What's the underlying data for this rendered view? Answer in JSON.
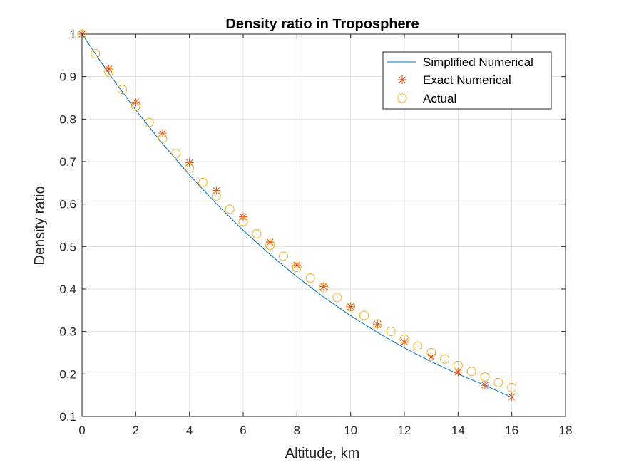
{
  "chart_data": {
    "type": "line",
    "title": "Density ratio in Troposphere",
    "xlabel": "Altitude, km",
    "ylabel": "Density ratio",
    "xlim": [
      0,
      18
    ],
    "ylim": [
      0.1,
      1
    ],
    "xticks": [
      0,
      2,
      4,
      6,
      8,
      10,
      12,
      14,
      16,
      18
    ],
    "yticks": [
      0.1,
      0.2,
      0.3,
      0.4,
      0.5,
      0.6,
      0.7,
      0.8,
      0.9,
      1
    ],
    "xtick_labels": [
      "0",
      "2",
      "4",
      "6",
      "8",
      "10",
      "12",
      "14",
      "16",
      "18"
    ],
    "ytick_labels": [
      "0.1",
      "0.2",
      "0.3",
      "0.4",
      "0.5",
      "0.6",
      "0.7",
      "0.8",
      "0.9",
      "1"
    ],
    "grid": true,
    "legend_position": "top-right",
    "series": [
      {
        "name": "Simplified Numerical",
        "style": "line",
        "color": "#0072BD",
        "x": [
          0,
          1,
          2,
          3,
          4,
          5,
          6,
          7,
          8,
          9,
          10,
          11,
          12,
          13,
          14,
          15,
          16
        ],
        "y": [
          1.0,
          0.9075,
          0.8216,
          0.7421,
          0.6685,
          0.6007,
          0.5383,
          0.4811,
          0.4287,
          0.3808,
          0.3372,
          0.2976,
          0.2616,
          0.2291,
          0.1998,
          0.1734,
          0.145
        ]
      },
      {
        "name": "Exact Numerical",
        "style": "star",
        "color": "#D95319",
        "x": [
          0,
          1,
          2,
          3,
          4,
          5,
          6,
          7,
          8,
          9,
          10,
          11,
          12,
          13,
          14,
          15,
          16
        ],
        "y": [
          1.0,
          0.9181,
          0.8403,
          0.7669,
          0.6976,
          0.6317,
          0.5703,
          0.5104,
          0.4566,
          0.4063,
          0.3584,
          0.3165,
          0.2753,
          0.2402,
          0.2045,
          0.1734,
          0.1462
        ]
      },
      {
        "name": "Actual",
        "style": "circle",
        "color": "#EDB120",
        "x": [
          0,
          0.5,
          1,
          1.5,
          2,
          2.5,
          3,
          3.5,
          4,
          4.5,
          5,
          5.5,
          6,
          6.5,
          7,
          7.5,
          8,
          8.5,
          9,
          9.5,
          10,
          10.5,
          11,
          11.5,
          12,
          12.5,
          13,
          13.5,
          14,
          14.5,
          15,
          15.5,
          16
        ],
        "y": [
          1.0,
          0.954,
          0.911,
          0.87,
          0.831,
          0.792,
          0.755,
          0.719,
          0.685,
          0.651,
          0.619,
          0.588,
          0.559,
          0.53,
          0.503,
          0.477,
          0.451,
          0.426,
          0.403,
          0.38,
          0.358,
          0.338,
          0.318,
          0.3,
          0.282,
          0.266,
          0.25,
          0.235,
          0.22,
          0.206,
          0.193,
          0.18,
          0.168
        ]
      }
    ]
  }
}
